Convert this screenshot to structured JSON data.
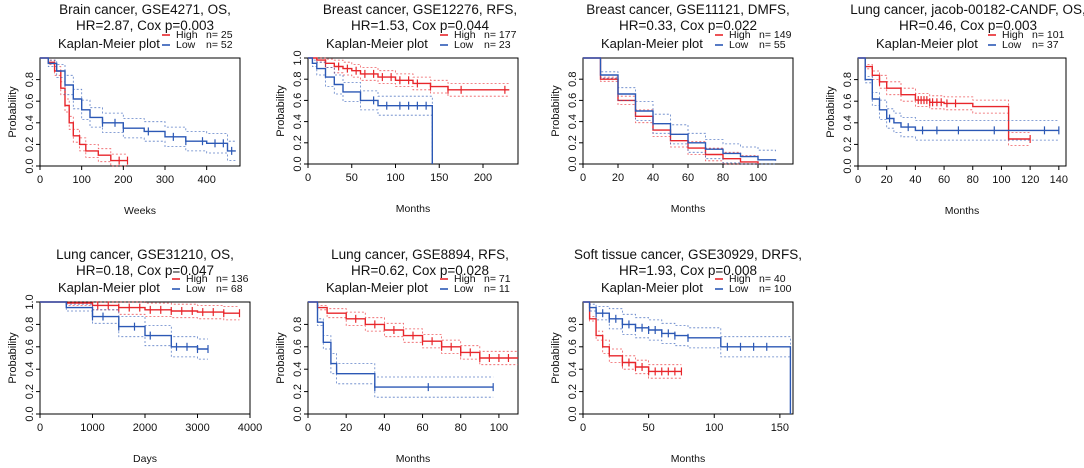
{
  "figure": {
    "panel_label": "Kaplan-Meier plot",
    "y_axis_label": "Probability"
  },
  "chart_data": [
    {
      "type": "line",
      "title_line1": "Brain cancer, GSE4271, OS,",
      "title_line2": "HR=2.87, Cox p=0.003",
      "xlabel": "Weeks",
      "ylabel": "Probability",
      "xlim": [
        0,
        480
      ],
      "ylim": [
        0,
        1
      ],
      "xticks": [
        0,
        100,
        200,
        300,
        400
      ],
      "yticks": [
        0.0,
        0.2,
        0.4,
        0.6,
        0.8
      ],
      "legend_position": "top-right",
      "series": [
        {
          "name": "High",
          "n_label": "n= 25",
          "color": "#e8262b",
          "x": [
            0,
            20,
            35,
            50,
            60,
            70,
            80,
            95,
            110,
            140,
            170,
            210
          ],
          "y": [
            1.0,
            0.96,
            0.88,
            0.72,
            0.56,
            0.4,
            0.28,
            0.2,
            0.14,
            0.1,
            0.05,
            0.05
          ],
          "censor_x": [
            190,
            210
          ]
        },
        {
          "name": "Low",
          "n_label": "n= 52",
          "color": "#2b58b5",
          "x": [
            0,
            20,
            40,
            60,
            80,
            100,
            120,
            150,
            200,
            250,
            300,
            350,
            400,
            450,
            470
          ],
          "y": [
            1.0,
            0.95,
            0.88,
            0.75,
            0.62,
            0.52,
            0.45,
            0.4,
            0.35,
            0.32,
            0.27,
            0.23,
            0.21,
            0.14,
            0.14
          ],
          "censor_x": [
            150,
            180,
            200,
            260,
            320,
            350,
            390,
            420,
            440,
            460
          ]
        }
      ]
    },
    {
      "type": "line",
      "title_line1": "Breast cancer, GSE12276, RFS,",
      "title_line2": "HR=1.53, Cox p=0.044",
      "xlabel": "Months",
      "ylabel": "Probability",
      "xlim": [
        0,
        240
      ],
      "ylim": [
        0,
        1
      ],
      "xticks": [
        0,
        50,
        100,
        150,
        200
      ],
      "yticks": [
        0.0,
        0.2,
        0.4,
        0.6,
        0.8,
        1.0
      ],
      "legend_position": "top-right",
      "series": [
        {
          "name": "High",
          "n_label": "n= 177",
          "color": "#e8262b",
          "x": [
            0,
            10,
            20,
            30,
            40,
            50,
            60,
            80,
            100,
            120,
            140,
            160,
            200,
            230
          ],
          "y": [
            1.0,
            0.98,
            0.95,
            0.92,
            0.9,
            0.88,
            0.85,
            0.82,
            0.79,
            0.76,
            0.73,
            0.7,
            0.7,
            0.7
          ],
          "censor_x": [
            20,
            35,
            45,
            55,
            65,
            75,
            85,
            95,
            105,
            115,
            125,
            140,
            160,
            175,
            225
          ]
        },
        {
          "name": "Low",
          "n_label": "n= 23",
          "color": "#2b58b5",
          "x": [
            0,
            5,
            10,
            20,
            30,
            40,
            60,
            80,
            100,
            140,
            142
          ],
          "y": [
            1.0,
            0.95,
            0.9,
            0.82,
            0.75,
            0.68,
            0.6,
            0.55,
            0.55,
            0.55,
            0.0
          ],
          "censor_x": [
            75,
            90,
            105,
            115,
            125,
            135
          ]
        }
      ]
    },
    {
      "type": "line",
      "title_line1": "Breast cancer, GSE11121, DMFS,",
      "title_line2": "HR=0.33, Cox p=0.022",
      "xlabel": "Months",
      "ylabel": "Probability",
      "xlim": [
        0,
        120
      ],
      "ylim": [
        0,
        1
      ],
      "xticks": [
        0,
        20,
        40,
        60,
        80,
        100
      ],
      "yticks": [
        0.0,
        0.2,
        0.4,
        0.6,
        0.8
      ],
      "legend_position": "top-right",
      "series": [
        {
          "name": "High",
          "n_label": "n= 149",
          "color": "#e8262b",
          "x": [
            0,
            10,
            20,
            30,
            40,
            50,
            60,
            70,
            80,
            90,
            100
          ],
          "y": [
            1.0,
            0.8,
            0.6,
            0.45,
            0.32,
            0.22,
            0.15,
            0.09,
            0.05,
            0.02,
            0.0
          ],
          "censor_x": []
        },
        {
          "name": "Low",
          "n_label": "n= 55",
          "color": "#2b58b5",
          "x": [
            0,
            10,
            20,
            30,
            40,
            50,
            60,
            70,
            80,
            90,
            100,
            110
          ],
          "y": [
            1.0,
            0.84,
            0.66,
            0.5,
            0.38,
            0.28,
            0.2,
            0.14,
            0.1,
            0.07,
            0.04,
            0.03
          ],
          "censor_x": []
        }
      ]
    },
    {
      "type": "line",
      "title_line1": "Lung cancer, jacob-00182-CANDF, OS,",
      "title_line2": "HR=0.46, Cox p=0.003",
      "xlabel": "Months",
      "ylabel": "Probability",
      "xlim": [
        0,
        145
      ],
      "ylim": [
        0,
        1
      ],
      "xticks": [
        0,
        20,
        40,
        60,
        80,
        100,
        120,
        140
      ],
      "yticks": [
        0.0,
        0.2,
        0.4,
        0.6,
        0.8
      ],
      "legend_position": "top-right",
      "series": [
        {
          "name": "High",
          "n_label": "n= 101",
          "color": "#e8262b",
          "x": [
            0,
            5,
            10,
            15,
            20,
            30,
            40,
            50,
            60,
            80,
            100,
            105,
            120
          ],
          "y": [
            1.0,
            0.92,
            0.84,
            0.78,
            0.72,
            0.66,
            0.61,
            0.59,
            0.58,
            0.55,
            0.55,
            0.25,
            0.25
          ],
          "censor_x": [
            15,
            42,
            44,
            46,
            48,
            50,
            52,
            55,
            58,
            62,
            68,
            120
          ]
        },
        {
          "name": "Low",
          "n_label": "n= 37",
          "color": "#2b58b5",
          "x": [
            0,
            5,
            10,
            15,
            20,
            25,
            30,
            40,
            60,
            80,
            140
          ],
          "y": [
            1.0,
            0.8,
            0.62,
            0.52,
            0.44,
            0.4,
            0.36,
            0.33,
            0.33,
            0.33,
            0.33
          ],
          "censor_x": [
            22,
            35,
            45,
            55,
            70,
            95,
            130,
            140
          ]
        }
      ]
    },
    {
      "type": "line",
      "title_line1": "Lung cancer, GSE31210, OS,",
      "title_line2": "HR=0.18, Cox p=0.047",
      "xlabel": "Days",
      "ylabel": "Probability",
      "xlim": [
        0,
        4000
      ],
      "ylim": [
        0,
        1
      ],
      "xticks": [
        0,
        1000,
        2000,
        3000,
        4000
      ],
      "yticks": [
        0.0,
        0.2,
        0.4,
        0.6,
        0.8,
        1.0
      ],
      "legend_position": "top-right",
      "series": [
        {
          "name": "High",
          "n_label": "n= 136",
          "color": "#e8262b",
          "x": [
            0,
            500,
            1000,
            1500,
            2000,
            2500,
            3000,
            3500,
            3800
          ],
          "y": [
            1.0,
            0.99,
            0.97,
            0.95,
            0.93,
            0.92,
            0.91,
            0.9,
            0.9
          ],
          "censor_x": [
            1100,
            1300,
            1500,
            1700,
            1900,
            2100,
            2300,
            2500,
            2700,
            2900,
            3100,
            3300,
            3500,
            3800
          ]
        },
        {
          "name": "Low",
          "n_label": "n= 68",
          "color": "#2b58b5",
          "x": [
            0,
            500,
            1000,
            1500,
            2000,
            2500,
            3000,
            3200
          ],
          "y": [
            1.0,
            0.95,
            0.87,
            0.78,
            0.7,
            0.6,
            0.58,
            0.58
          ],
          "censor_x": [
            1000,
            1200,
            1500,
            1800,
            2100,
            2600,
            2800,
            3000,
            3200
          ]
        }
      ]
    },
    {
      "type": "line",
      "title_line1": "Lung cancer, GSE8894, RFS,",
      "title_line2": "HR=0.62, Cox p=0.028",
      "xlabel": "Months",
      "ylabel": "Probability",
      "xlim": [
        0,
        110
      ],
      "ylim": [
        0,
        1
      ],
      "xticks": [
        0,
        20,
        40,
        60,
        80,
        100
      ],
      "yticks": [
        0.0,
        0.2,
        0.4,
        0.6,
        0.8
      ],
      "legend_position": "top-right",
      "series": [
        {
          "name": "High",
          "n_label": "n= 71",
          "color": "#e8262b",
          "x": [
            0,
            5,
            10,
            20,
            30,
            40,
            50,
            60,
            70,
            80,
            90,
            100,
            110
          ],
          "y": [
            1.0,
            0.95,
            0.9,
            0.85,
            0.8,
            0.75,
            0.7,
            0.65,
            0.6,
            0.55,
            0.5,
            0.5,
            0.5
          ],
          "censor_x": [
            25,
            35,
            45,
            55,
            60,
            65,
            70,
            75,
            80,
            85,
            90,
            95,
            100,
            105
          ]
        },
        {
          "name": "Low",
          "n_label": "n= 11",
          "color": "#2b58b5",
          "x": [
            0,
            5,
            8,
            12,
            15,
            20,
            30,
            35,
            60,
            97
          ],
          "y": [
            1.0,
            0.82,
            0.64,
            0.45,
            0.36,
            0.36,
            0.36,
            0.24,
            0.24,
            0.24
          ],
          "censor_x": [
            35,
            63,
            97
          ]
        }
      ]
    },
    {
      "type": "line",
      "title_line1": "Soft tissue cancer, GSE30929, DRFS,",
      "title_line2": "HR=1.93, Cox p=0.008",
      "xlabel": "Months",
      "ylabel": "Probability",
      "xlim": [
        0,
        160
      ],
      "ylim": [
        0,
        1
      ],
      "xticks": [
        0,
        50,
        100,
        150
      ],
      "yticks": [
        0.0,
        0.2,
        0.4,
        0.6,
        0.8
      ],
      "legend_position": "top-right",
      "series": [
        {
          "name": "High",
          "n_label": "n= 40",
          "color": "#e8262b",
          "x": [
            0,
            5,
            10,
            15,
            20,
            30,
            40,
            50,
            60,
            75
          ],
          "y": [
            1.0,
            0.85,
            0.7,
            0.6,
            0.52,
            0.46,
            0.42,
            0.38,
            0.38,
            0.38
          ],
          "censor_x": [
            30,
            35,
            40,
            45,
            50,
            55,
            60,
            65,
            70,
            75
          ]
        },
        {
          "name": "Low",
          "n_label": "n= 100",
          "color": "#2b58b5",
          "x": [
            0,
            5,
            10,
            20,
            30,
            40,
            50,
            60,
            70,
            80,
            100,
            105,
            150,
            158
          ],
          "y": [
            1.0,
            0.95,
            0.9,
            0.85,
            0.8,
            0.77,
            0.75,
            0.72,
            0.7,
            0.68,
            0.68,
            0.6,
            0.6,
            0.0
          ],
          "censor_x": [
            5,
            10,
            15,
            20,
            25,
            30,
            35,
            40,
            45,
            50,
            55,
            60,
            65,
            70,
            80,
            110,
            120,
            130,
            140
          ]
        }
      ]
    }
  ]
}
